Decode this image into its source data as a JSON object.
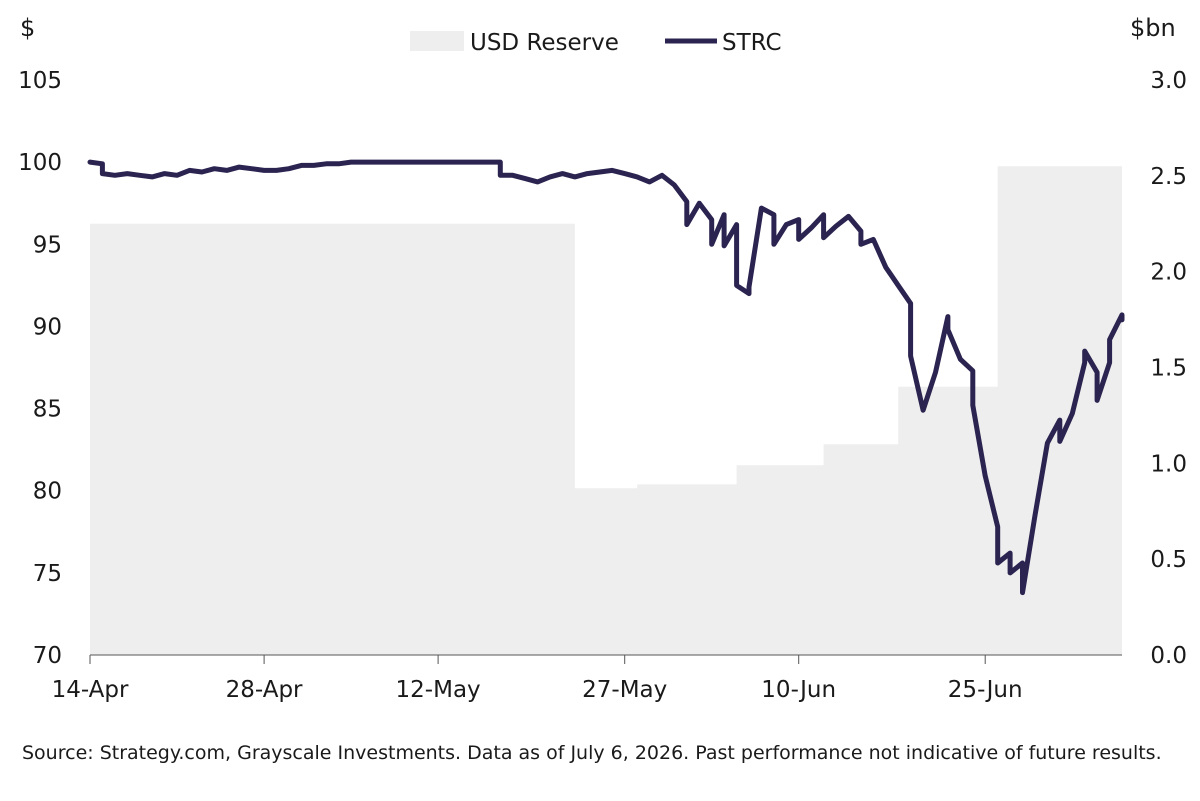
{
  "chart_data": {
    "type": "line",
    "left_axis_unit": "$",
    "right_axis_unit": "$bn",
    "y_left": {
      "ticks": [
        "105",
        "100",
        "95",
        "90",
        "85",
        "80",
        "75",
        "70"
      ],
      "range": [
        70,
        105
      ]
    },
    "y_right": {
      "ticks": [
        "3.0",
        "2.5",
        "2.0",
        "1.5",
        "1.0",
        "0.5",
        "0.0"
      ],
      "range": [
        0,
        3.0
      ]
    },
    "x_axis": {
      "start": "2026-04-14",
      "end": "2026-07-06",
      "ticks": [
        {
          "date": "2026-04-14",
          "label": "14-Apr"
        },
        {
          "date": "2026-04-28",
          "label": "28-Apr"
        },
        {
          "date": "2026-05-12",
          "label": "12-May"
        },
        {
          "date": "2026-05-27",
          "label": "27-May"
        },
        {
          "date": "2026-06-10",
          "label": "10-Jun"
        },
        {
          "date": "2026-06-25",
          "label": "25-Jun"
        }
      ]
    },
    "legend": {
      "placement": "top-center"
    },
    "series": [
      {
        "name": "USD Reserve",
        "type": "area-step",
        "axis": "right",
        "color": "#eeeeee",
        "points": [
          [
            "2026-04-14",
            2.25
          ],
          [
            "2026-05-23",
            2.25
          ],
          [
            "2026-05-23",
            0.87
          ],
          [
            "2026-05-28",
            0.87
          ],
          [
            "2026-05-28",
            0.89
          ],
          [
            "2026-06-05",
            0.89
          ],
          [
            "2026-06-05",
            0.99
          ],
          [
            "2026-06-12",
            0.99
          ],
          [
            "2026-06-12",
            1.1
          ],
          [
            "2026-06-18",
            1.1
          ],
          [
            "2026-06-18",
            1.4
          ],
          [
            "2026-06-26",
            1.4
          ],
          [
            "2026-06-26",
            2.55
          ],
          [
            "2026-07-06",
            2.55
          ]
        ]
      },
      {
        "name": "STRC",
        "type": "line",
        "axis": "left",
        "color": "#2b2450",
        "points": [
          [
            "2026-04-14",
            100.0
          ],
          [
            "2026-04-15",
            99.9
          ],
          [
            "2026-04-15",
            99.3
          ],
          [
            "2026-04-16",
            99.2
          ],
          [
            "2026-04-17",
            99.3
          ],
          [
            "2026-04-18",
            99.2
          ],
          [
            "2026-04-19",
            99.1
          ],
          [
            "2026-04-20",
            99.3
          ],
          [
            "2026-04-21",
            99.2
          ],
          [
            "2026-04-22",
            99.5
          ],
          [
            "2026-04-23",
            99.4
          ],
          [
            "2026-04-24",
            99.6
          ],
          [
            "2026-04-25",
            99.5
          ],
          [
            "2026-04-26",
            99.7
          ],
          [
            "2026-04-27",
            99.6
          ],
          [
            "2026-04-28",
            99.5
          ],
          [
            "2026-04-29",
            99.5
          ],
          [
            "2026-04-30",
            99.6
          ],
          [
            "2026-05-01",
            99.8
          ],
          [
            "2026-05-02",
            99.8
          ],
          [
            "2026-05-03",
            99.9
          ],
          [
            "2026-05-04",
            99.9
          ],
          [
            "2026-05-05",
            100.0
          ],
          [
            "2026-05-06",
            100.0
          ],
          [
            "2026-05-08",
            100.0
          ],
          [
            "2026-05-10",
            100.0
          ],
          [
            "2026-05-12",
            100.0
          ],
          [
            "2026-05-14",
            100.0
          ],
          [
            "2026-05-17",
            100.0
          ],
          [
            "2026-05-17",
            99.2
          ],
          [
            "2026-05-18",
            99.2
          ],
          [
            "2026-05-19",
            99.0
          ],
          [
            "2026-05-20",
            98.8
          ],
          [
            "2026-05-21",
            99.1
          ],
          [
            "2026-05-22",
            99.3
          ],
          [
            "2026-05-23",
            99.1
          ],
          [
            "2026-05-24",
            99.3
          ],
          [
            "2026-05-25",
            99.4
          ],
          [
            "2026-05-26",
            99.5
          ],
          [
            "2026-05-27",
            99.3
          ],
          [
            "2026-05-28",
            99.1
          ],
          [
            "2026-05-29",
            98.8
          ],
          [
            "2026-05-30",
            99.2
          ],
          [
            "2026-05-31",
            98.6
          ],
          [
            "2026-06-01",
            97.6
          ],
          [
            "2026-06-01",
            96.2
          ],
          [
            "2026-06-02",
            97.5
          ],
          [
            "2026-06-03",
            96.5
          ],
          [
            "2026-06-03",
            95.0
          ],
          [
            "2026-06-04",
            96.8
          ],
          [
            "2026-06-04",
            94.9
          ],
          [
            "2026-06-05",
            96.2
          ],
          [
            "2026-06-05",
            92.5
          ],
          [
            "2026-06-06",
            92.0
          ],
          [
            "2026-06-06",
            92.4
          ],
          [
            "2026-06-07",
            97.2
          ],
          [
            "2026-06-08",
            96.8
          ],
          [
            "2026-06-08",
            95.0
          ],
          [
            "2026-06-09",
            96.2
          ],
          [
            "2026-06-10",
            96.5
          ],
          [
            "2026-06-10",
            95.3
          ],
          [
            "2026-06-11",
            96.0
          ],
          [
            "2026-06-12",
            96.8
          ],
          [
            "2026-06-12",
            95.4
          ],
          [
            "2026-06-13",
            96.1
          ],
          [
            "2026-06-14",
            96.7
          ],
          [
            "2026-06-15",
            95.8
          ],
          [
            "2026-06-15",
            95.0
          ],
          [
            "2026-06-16",
            95.3
          ],
          [
            "2026-06-17",
            93.6
          ],
          [
            "2026-06-18",
            92.5
          ],
          [
            "2026-06-19",
            91.4
          ],
          [
            "2026-06-19",
            88.2
          ],
          [
            "2026-06-20",
            84.9
          ],
          [
            "2026-06-21",
            87.2
          ],
          [
            "2026-06-22",
            90.6
          ],
          [
            "2026-06-22",
            89.8
          ],
          [
            "2026-06-23",
            88.0
          ],
          [
            "2026-06-24",
            87.3
          ],
          [
            "2026-06-24",
            85.2
          ],
          [
            "2026-06-25",
            80.9
          ],
          [
            "2026-06-26",
            77.8
          ],
          [
            "2026-06-26",
            75.6
          ],
          [
            "2026-06-27",
            76.2
          ],
          [
            "2026-06-27",
            75.0
          ],
          [
            "2026-06-28",
            75.6
          ],
          [
            "2026-06-28",
            73.8
          ],
          [
            "2026-06-29",
            78.5
          ],
          [
            "2026-06-30",
            82.9
          ],
          [
            "2026-07-01",
            84.3
          ],
          [
            "2026-07-01",
            83.0
          ],
          [
            "2026-07-02",
            84.7
          ],
          [
            "2026-07-03",
            87.8
          ],
          [
            "2026-07-03",
            88.5
          ],
          [
            "2026-07-04",
            87.2
          ],
          [
            "2026-07-04",
            85.5
          ],
          [
            "2026-07-05",
            87.8
          ],
          [
            "2026-07-05",
            89.2
          ],
          [
            "2026-07-06",
            90.7
          ],
          [
            "2026-07-06",
            90.4
          ]
        ]
      }
    ],
    "grid": false
  },
  "footnote": "Source: Strategy.com, Grayscale Investments. Data as of July 6, 2026. Past performance not indicative of future results."
}
